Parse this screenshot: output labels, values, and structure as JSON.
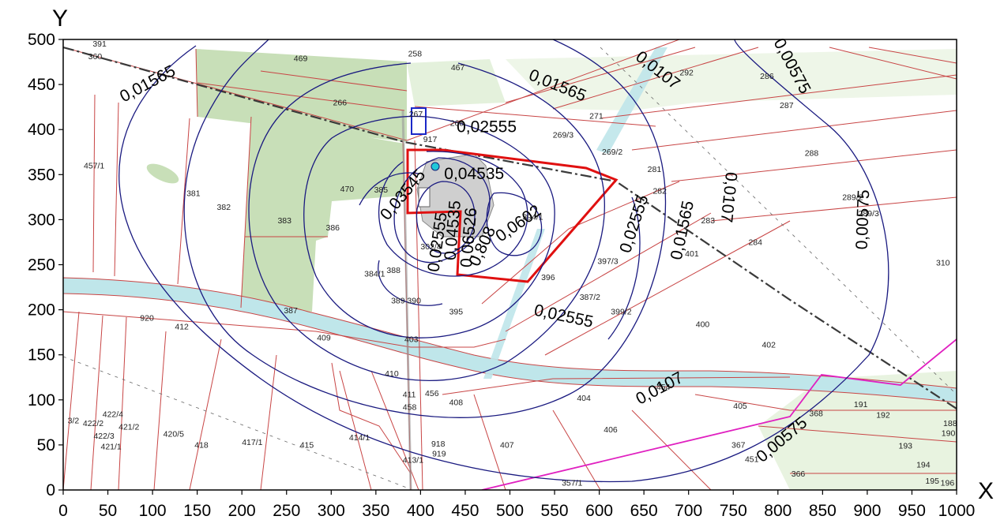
{
  "axes": {
    "x_label": "X",
    "y_label": "Y",
    "x_ticks": [
      "0",
      "50",
      "100",
      "150",
      "200",
      "250",
      "300",
      "350",
      "400",
      "450",
      "500",
      "550",
      "600",
      "650",
      "700",
      "750",
      "800",
      "850",
      "900",
      "950",
      "1000"
    ],
    "y_ticks": [
      "0",
      "50",
      "100",
      "150",
      "200",
      "250",
      "300",
      "350",
      "400",
      "450",
      "500"
    ],
    "xlim": [
      0,
      1000
    ],
    "ylim": [
      0,
      500
    ]
  },
  "colors": {
    "contour": "#1a1a80",
    "parcel_line": "#c84545",
    "boundary": "#e01010",
    "forest": "#c8dfb8",
    "field": "#e4f1dc",
    "water": "#bfe6ea",
    "railway": "#3a3a3a",
    "power_line": "#e020c0",
    "marker": "#20c8d8"
  },
  "contour_labels": [
    {
      "text": "0,01565",
      "x": 95,
      "y": 450,
      "rot": -28
    },
    {
      "text": "0,01565",
      "x": 553,
      "y": 448,
      "rot": 22
    },
    {
      "text": "0,0107",
      "x": 665,
      "y": 465,
      "rot": 38
    },
    {
      "text": "0,00575",
      "x": 815,
      "y": 470,
      "rot": 62
    },
    {
      "text": "0,02555",
      "x": 474,
      "y": 402,
      "rot": 0
    },
    {
      "text": "0,04535",
      "x": 460,
      "y": 350,
      "rot": 0
    },
    {
      "text": "0,03545",
      "x": 381,
      "y": 327,
      "rot": -50
    },
    {
      "text": "0,02555",
      "x": 640,
      "y": 295,
      "rot": -72
    },
    {
      "text": "0,01565",
      "x": 694,
      "y": 288,
      "rot": -78
    },
    {
      "text": "0,0107",
      "x": 744,
      "y": 325,
      "rot": 96
    },
    {
      "text": "0,00575",
      "x": 896,
      "y": 300,
      "rot": -88
    },
    {
      "text": "0,0602",
      "x": 510,
      "y": 295,
      "rot": -35
    },
    {
      "text": "0,808",
      "x": 470,
      "y": 270,
      "rot": -65
    },
    {
      "text": "0,02555",
      "x": 420,
      "y": 275,
      "rot": -82
    },
    {
      "text": "0,04535",
      "x": 437,
      "y": 288,
      "rot": -85
    },
    {
      "text": "0,06526",
      "x": 455,
      "y": 280,
      "rot": -85
    },
    {
      "text": "0,02555",
      "x": 560,
      "y": 192,
      "rot": 12
    },
    {
      "text": "0,0107",
      "x": 668,
      "y": 112,
      "rot": -28
    },
    {
      "text": "0,00575",
      "x": 805,
      "y": 55,
      "rot": -40
    }
  ],
  "parcel_labels": [
    {
      "t": "391",
      "x": 33,
      "y": 492
    },
    {
      "t": "360",
      "x": 28,
      "y": 478
    },
    {
      "t": "258",
      "x": 386,
      "y": 481
    },
    {
      "t": "467",
      "x": 434,
      "y": 466
    },
    {
      "t": "469",
      "x": 258,
      "y": 476
    },
    {
      "t": "266",
      "x": 302,
      "y": 427
    },
    {
      "t": "267",
      "x": 387,
      "y": 414
    },
    {
      "t": "268",
      "x": 433,
      "y": 404
    },
    {
      "t": "917",
      "x": 403,
      "y": 386
    },
    {
      "t": "271",
      "x": 589,
      "y": 412
    },
    {
      "t": "269/3",
      "x": 548,
      "y": 391
    },
    {
      "t": "269/2",
      "x": 603,
      "y": 372
    },
    {
      "t": "292",
      "x": 690,
      "y": 460
    },
    {
      "t": "286",
      "x": 780,
      "y": 456
    },
    {
      "t": "287",
      "x": 802,
      "y": 424
    },
    {
      "t": "288",
      "x": 830,
      "y": 371
    },
    {
      "t": "289/2",
      "x": 872,
      "y": 322
    },
    {
      "t": "289/3",
      "x": 890,
      "y": 304
    },
    {
      "t": "281",
      "x": 654,
      "y": 353
    },
    {
      "t": "282",
      "x": 660,
      "y": 329
    },
    {
      "t": "283",
      "x": 714,
      "y": 296
    },
    {
      "t": "284",
      "x": 767,
      "y": 272
    },
    {
      "t": "310",
      "x": 977,
      "y": 249
    },
    {
      "t": "401",
      "x": 696,
      "y": 259
    },
    {
      "t": "457/1",
      "x": 23,
      "y": 357
    },
    {
      "t": "381",
      "x": 138,
      "y": 326
    },
    {
      "t": "382",
      "x": 172,
      "y": 311
    },
    {
      "t": "383",
      "x": 240,
      "y": 296
    },
    {
      "t": "470",
      "x": 310,
      "y": 331
    },
    {
      "t": "385",
      "x": 348,
      "y": 330
    },
    {
      "t": "386",
      "x": 294,
      "y": 288
    },
    {
      "t": "302/4",
      "x": 400,
      "y": 267
    },
    {
      "t": "394/1",
      "x": 514,
      "y": 300
    },
    {
      "t": "397/3",
      "x": 598,
      "y": 251
    },
    {
      "t": "396",
      "x": 535,
      "y": 233
    },
    {
      "t": "384/1",
      "x": 337,
      "y": 237
    },
    {
      "t": "388",
      "x": 362,
      "y": 241
    },
    {
      "t": "389",
      "x": 367,
      "y": 207
    },
    {
      "t": "390",
      "x": 385,
      "y": 207
    },
    {
      "t": "387/2",
      "x": 578,
      "y": 211
    },
    {
      "t": "399/2",
      "x": 613,
      "y": 195
    },
    {
      "t": "395",
      "x": 432,
      "y": 195
    },
    {
      "t": "400",
      "x": 708,
      "y": 181
    },
    {
      "t": "387",
      "x": 247,
      "y": 196
    },
    {
      "t": "920",
      "x": 86,
      "y": 188
    },
    {
      "t": "412",
      "x": 125,
      "y": 178
    },
    {
      "t": "409",
      "x": 284,
      "y": 166
    },
    {
      "t": "403",
      "x": 382,
      "y": 164
    },
    {
      "t": "402",
      "x": 782,
      "y": 158
    },
    {
      "t": "410",
      "x": 360,
      "y": 126
    },
    {
      "t": "454",
      "x": 664,
      "y": 111
    },
    {
      "t": "411",
      "x": 380,
      "y": 103
    },
    {
      "t": "456",
      "x": 405,
      "y": 104
    },
    {
      "t": "458",
      "x": 380,
      "y": 89
    },
    {
      "t": "408",
      "x": 432,
      "y": 94
    },
    {
      "t": "404",
      "x": 575,
      "y": 99
    },
    {
      "t": "405",
      "x": 750,
      "y": 90
    },
    {
      "t": "368",
      "x": 835,
      "y": 82
    },
    {
      "t": "191",
      "x": 885,
      "y": 92
    },
    {
      "t": "192",
      "x": 910,
      "y": 80
    },
    {
      "t": "188",
      "x": 985,
      "y": 71
    },
    {
      "t": "190",
      "x": 983,
      "y": 60
    },
    {
      "t": "406",
      "x": 605,
      "y": 64
    },
    {
      "t": "367",
      "x": 748,
      "y": 47
    },
    {
      "t": "193",
      "x": 935,
      "y": 46
    },
    {
      "t": "451",
      "x": 763,
      "y": 31
    },
    {
      "t": "366",
      "x": 815,
      "y": 15
    },
    {
      "t": "194",
      "x": 955,
      "y": 25
    },
    {
      "t": "195",
      "x": 965,
      "y": 7
    },
    {
      "t": "196",
      "x": 982,
      "y": 5
    },
    {
      "t": "357/1",
      "x": 558,
      "y": 5
    },
    {
      "t": "407",
      "x": 489,
      "y": 47
    },
    {
      "t": "918",
      "x": 412,
      "y": 48
    },
    {
      "t": "919",
      "x": 413,
      "y": 37
    },
    {
      "t": "413/1",
      "x": 380,
      "y": 30
    },
    {
      "t": "415",
      "x": 265,
      "y": 47
    },
    {
      "t": "414/1",
      "x": 320,
      "y": 55
    },
    {
      "t": "417/1",
      "x": 200,
      "y": 50
    },
    {
      "t": "418",
      "x": 147,
      "y": 47
    },
    {
      "t": "420/5",
      "x": 112,
      "y": 59
    },
    {
      "t": "3/2",
      "x": 5,
      "y": 74
    },
    {
      "t": "422/2",
      "x": 22,
      "y": 71
    },
    {
      "t": "422/4",
      "x": 44,
      "y": 81
    },
    {
      "t": "421/2",
      "x": 62,
      "y": 67
    },
    {
      "t": "422/3",
      "x": 34,
      "y": 57
    },
    {
      "t": "421/1",
      "x": 42,
      "y": 45
    }
  ]
}
